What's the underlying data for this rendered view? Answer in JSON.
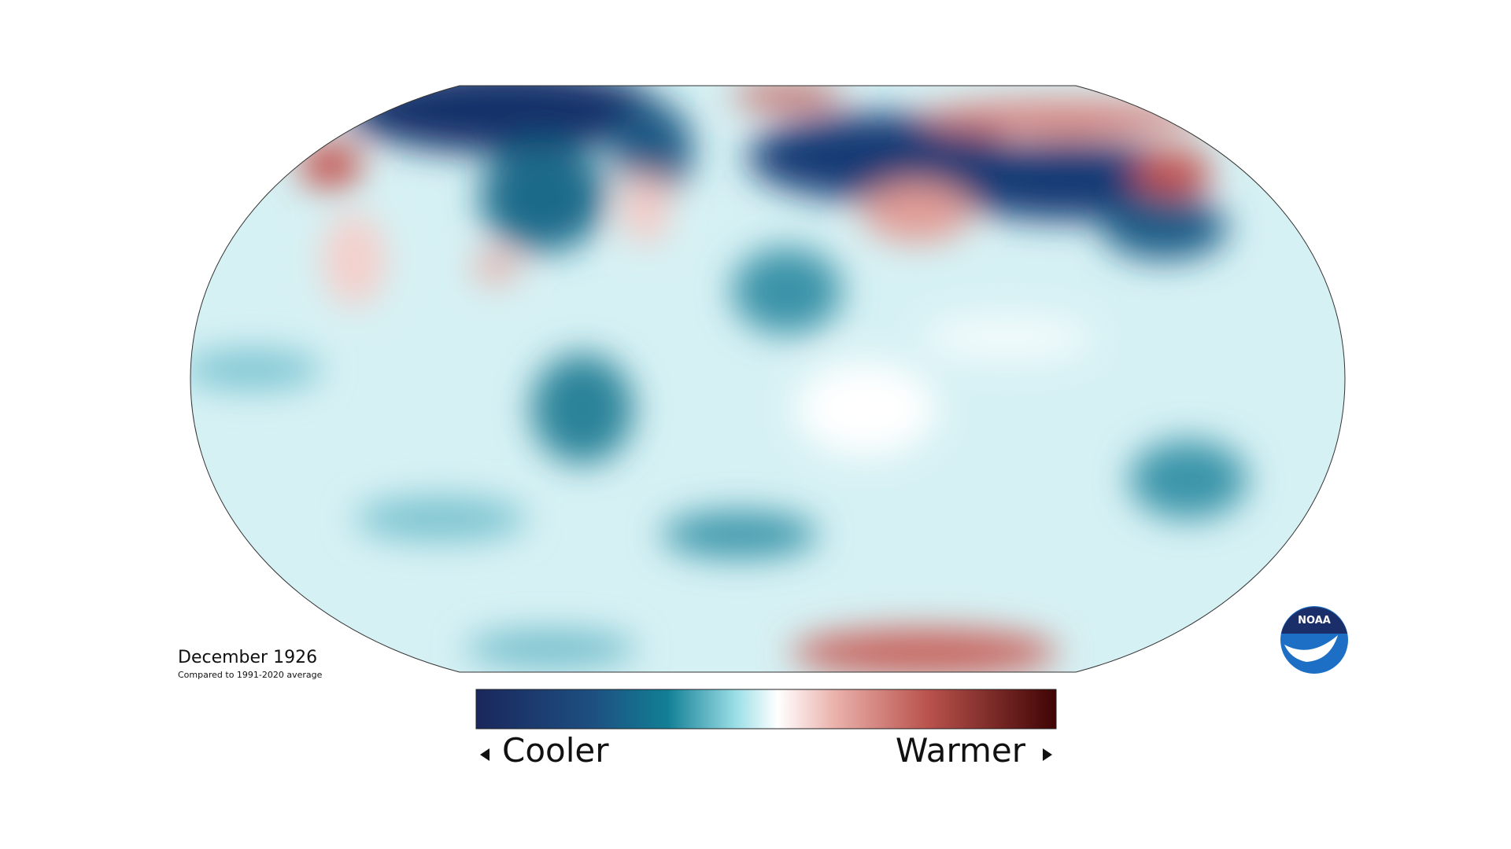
{
  "title": "December 1926",
  "subtitle": "Compared to 1991-2020 average",
  "legend": {
    "low_label": "Cooler",
    "high_label": "Warmer"
  },
  "logo": {
    "text": "NOAA"
  }
}
